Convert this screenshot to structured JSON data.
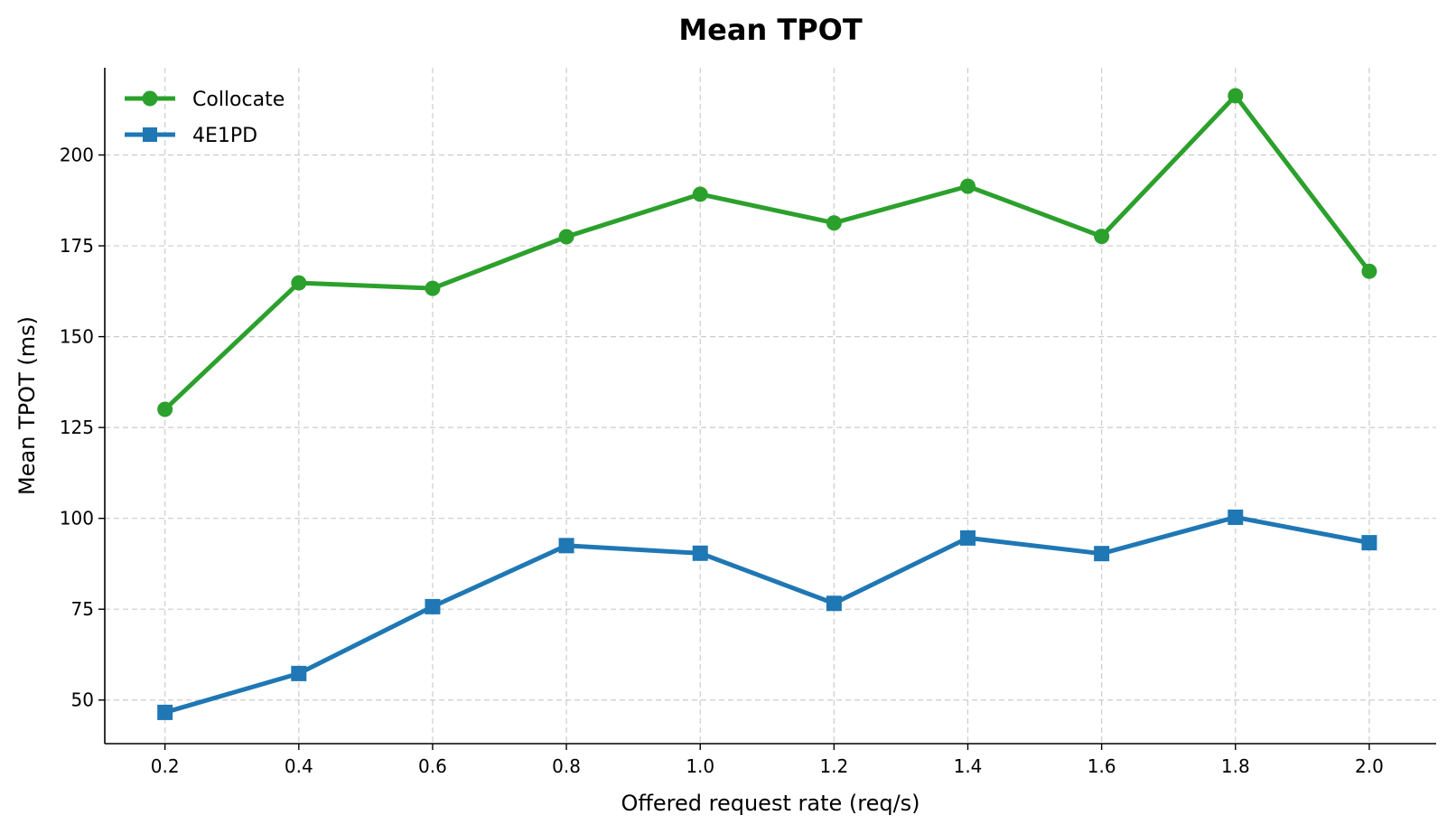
{
  "chart_data": {
    "type": "line",
    "title": "Mean TPOT",
    "xlabel": "Offered request rate (req/s)",
    "ylabel": "Mean TPOT (ms)",
    "x": [
      0.2,
      0.4,
      0.6,
      0.8,
      1.0,
      1.2,
      1.4,
      1.6,
      1.8,
      2.0
    ],
    "x_tick_labels": [
      "0.2",
      "0.4",
      "0.6",
      "0.8",
      "1.0",
      "1.2",
      "1.4",
      "1.6",
      "1.8",
      "2.0"
    ],
    "y_ticks": [
      50,
      75,
      100,
      125,
      150,
      175,
      200
    ],
    "xlim": [
      0.11,
      2.1
    ],
    "ylim": [
      38,
      224
    ],
    "grid": true,
    "legend_position": "top-left",
    "series": [
      {
        "name": "Collocate",
        "color": "#2ca02c",
        "marker": "circle",
        "values": [
          130,
          164.8,
          163.3,
          177.5,
          189.2,
          181.3,
          191.4,
          177.6,
          216.3,
          168
        ]
      },
      {
        "name": "4E1PD",
        "color": "#1f77b4",
        "marker": "square",
        "values": [
          46.6,
          57.3,
          75.7,
          92.5,
          90.4,
          76.6,
          94.6,
          90.3,
          100.3,
          93.3
        ]
      }
    ]
  }
}
